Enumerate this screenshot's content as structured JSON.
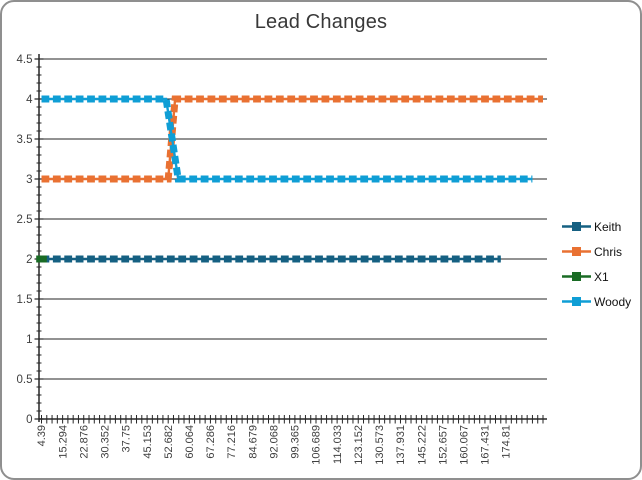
{
  "chart_data": {
    "type": "line",
    "title": "Lead Changes",
    "xlabel": "",
    "ylabel": "",
    "grid": true,
    "legend_position": "right",
    "n_ticks": 96,
    "label_every_n_ticks": 4,
    "x_tick_labels": [
      "4.39",
      "15.294",
      "22.876",
      "30.352",
      "37.75",
      "45.153",
      "52.682",
      "60.064",
      "67.286",
      "77.216",
      "84.679",
      "92.068",
      "99.365",
      "106.689",
      "114.033",
      "123.152",
      "130.573",
      "137.931",
      "145.222",
      "152.657",
      "160.067",
      "167.431",
      "174.81"
    ],
    "y_axis": {
      "min": 0,
      "max": 4.5,
      "major_step": 0.5,
      "minor_step": 0.1,
      "tick_labels": [
        "0",
        "0.5",
        "1",
        "1.5",
        "2",
        "2.5",
        "3",
        "3.5",
        "4",
        "4.5"
      ]
    },
    "series": [
      {
        "name": "Keith",
        "color": "#156082",
        "points": [
          [
            0,
            2
          ],
          [
            87,
            2
          ]
        ]
      },
      {
        "name": "Chris",
        "color": "#E97132",
        "points": [
          [
            0,
            3
          ],
          [
            24,
            3
          ],
          [
            25.3,
            4
          ],
          [
            95,
            4
          ]
        ]
      },
      {
        "name": "X1",
        "color": "#196B24",
        "points": [
          [
            0,
            2
          ]
        ]
      },
      {
        "name": "Woody",
        "color": "#0F9ED5",
        "points": [
          [
            0,
            4
          ],
          [
            23.6,
            4
          ],
          [
            25.9,
            3
          ],
          [
            93,
            3
          ]
        ]
      }
    ]
  },
  "style_colors": {
    "gridline": "#262626",
    "axis": "#262626",
    "tick_label": "#3f3f3f",
    "title_text": "#383838",
    "frame_border": "#8f8f8f"
  }
}
